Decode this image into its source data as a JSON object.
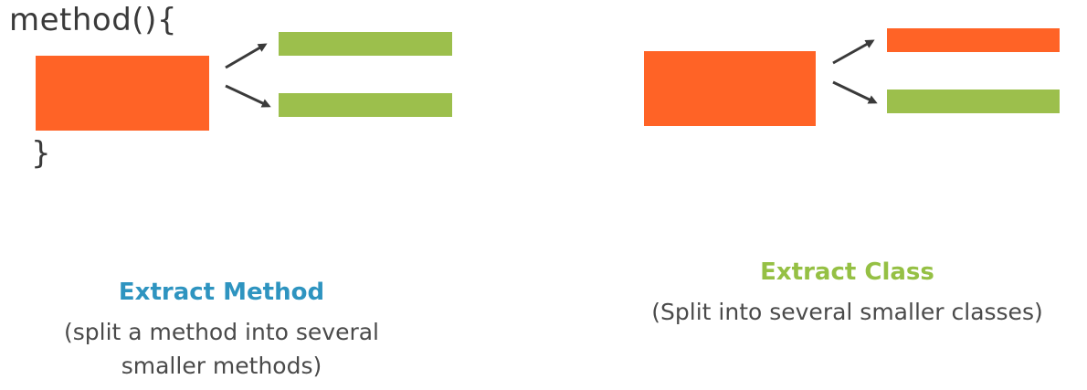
{
  "colors": {
    "orange": "#ff6326",
    "green": "#9cbf4c",
    "blue_title": "#2e94c0",
    "green_title": "#95c044",
    "arrow": "#3a3a3a",
    "code_text": "#3a3a3a",
    "caption_text": "#4a4a4a"
  },
  "left_panel": {
    "code_open": "method(){",
    "code_close": "}",
    "title": "Extract Method",
    "description_line1": "(split a method into several",
    "description_line2": "smaller methods)"
  },
  "right_panel": {
    "title": "Extract Class",
    "description": "(Split into several smaller classes)"
  }
}
